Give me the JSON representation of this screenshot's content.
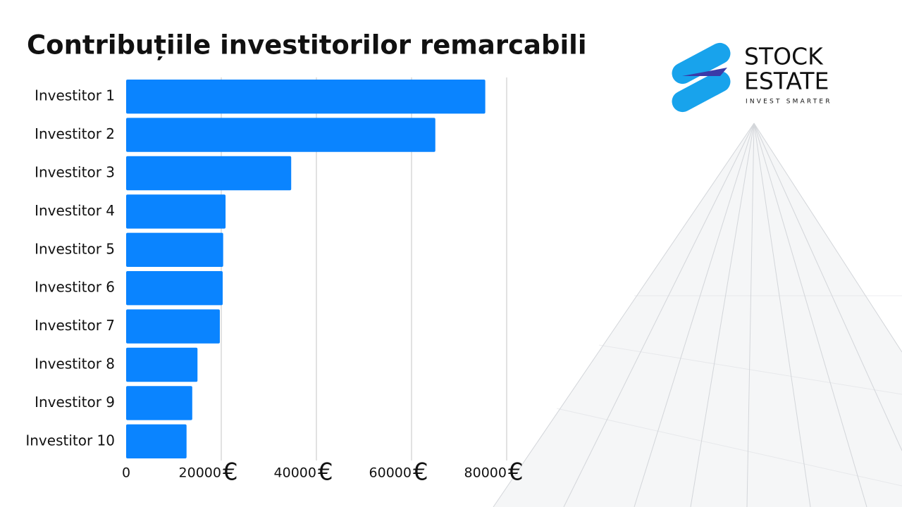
{
  "logo": {
    "line1": "STOCK",
    "line2": "ESTATE",
    "tagline": "INVEST SMARTER"
  },
  "chart_data": {
    "type": "bar",
    "orientation": "horizontal",
    "title": "Contribuțiile investitorilor remarcabili",
    "categories": [
      "Investitor 1",
      "Investitor 2",
      "Investitor 3",
      "Investitor 4",
      "Investitor 5",
      "Investitor 6",
      "Investitor 7",
      "Investitor 8",
      "Investitor 9",
      "Investitor 10"
    ],
    "values": [
      75500,
      65000,
      34700,
      20900,
      20400,
      20300,
      19700,
      15000,
      13900,
      12700
    ],
    "color": "#0a84ff",
    "xlim": [
      0,
      80000
    ],
    "xticks": [
      0,
      20000,
      40000,
      60000,
      80000
    ],
    "x_unit": "€",
    "grid": true
  }
}
